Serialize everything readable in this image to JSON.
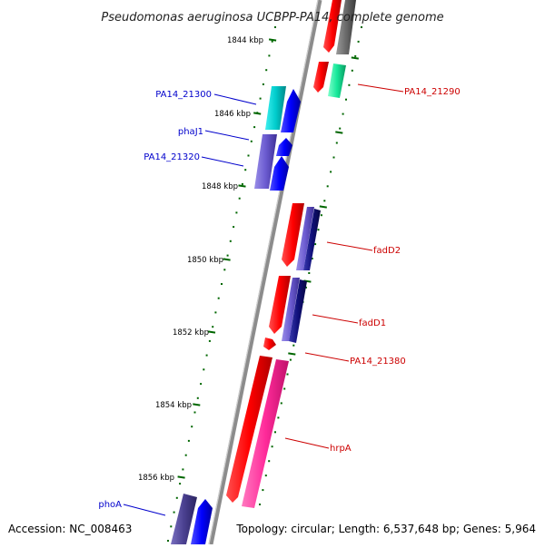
{
  "title": "Pseudomonas aeruginosa UCBPP-PA14, complete genome",
  "footer": {
    "accession": "Accession: NC_008463",
    "summary": "Topology: circular; Length: 6,537,648 bp; Genes: 5,964"
  },
  "scale": {
    "ticks": [
      {
        "label": "1844 kbp"
      },
      {
        "label": "1846 kbp"
      },
      {
        "label": "1848 kbp"
      },
      {
        "label": "1850 kbp"
      },
      {
        "label": "1852 kbp"
      },
      {
        "label": "1854 kbp"
      },
      {
        "label": "1856 kbp"
      }
    ]
  },
  "gene_labels": {
    "left": [
      {
        "name": "PA14_21300",
        "color": "#0000cc"
      },
      {
        "name": "phaJ1",
        "color": "#0000cc"
      },
      {
        "name": "PA14_21320",
        "color": "#0000cc"
      },
      {
        "name": "phoA",
        "color": "#0000cc"
      }
    ],
    "right": [
      {
        "name": "PA14_21290",
        "color": "#cc0000"
      },
      {
        "name": "fadD2",
        "color": "#cc0000"
      },
      {
        "name": "fadD1",
        "color": "#cc0000"
      },
      {
        "name": "PA14_21380",
        "color": "#cc0000"
      },
      {
        "name": "hrpA",
        "color": "#cc0000"
      }
    ]
  },
  "colors": {
    "backbone": "#8c8c8c",
    "tick": "#006600",
    "forward_gene": "#ff0000",
    "reverse_gene": "#0000ff",
    "cyan_gene": "#00cccc",
    "lavender_gene": "#6b5bd0",
    "navy_gene": "#10107a",
    "pink_gene": "#ff2b9a",
    "green_gene": "#16e89a",
    "gray_gene": "#6a6a6a"
  }
}
